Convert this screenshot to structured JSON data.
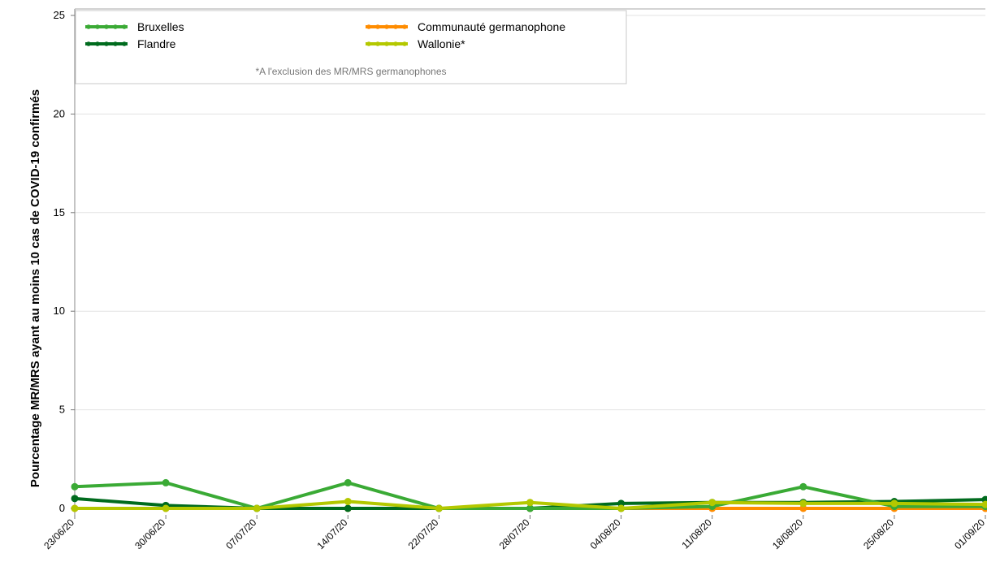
{
  "chart_data": {
    "type": "line",
    "title": "",
    "xlabel": "",
    "ylabel": "Pourcentage MR/MRS ayant au moins 10 cas de COVID-19 confirmés",
    "ylim": [
      0,
      25
    ],
    "yticks": [
      0,
      5,
      10,
      15,
      20,
      25
    ],
    "grid": "horizontal",
    "legend_placement": "top-left",
    "legend_note": "*A l'exclusion des MR/MRS germanophones",
    "categories": [
      "23/06/20",
      "30/06/20",
      "07/07/20",
      "14/07/20",
      "22/07/20",
      "28/07/20",
      "04/08/20",
      "11/08/20",
      "18/08/20",
      "25/08/20",
      "01/09/20"
    ],
    "series": [
      {
        "name": "Bruxelles",
        "color": "#3aaa35",
        "values": [
          1.1,
          1.3,
          0.0,
          1.3,
          0.0,
          0.0,
          0.0,
          0.1,
          1.1,
          0.1,
          0.1
        ]
      },
      {
        "name": "Communauté germanophone",
        "color": "#ff8c00",
        "values": [
          0.0,
          0.0,
          0.0,
          0.0,
          0.0,
          0.0,
          0.0,
          0.0,
          0.0,
          0.0,
          0.0
        ]
      },
      {
        "name": "Flandre",
        "color": "#006b1e",
        "values": [
          0.5,
          0.15,
          0.0,
          0.0,
          0.0,
          0.0,
          0.25,
          0.3,
          0.3,
          0.35,
          0.45
        ]
      },
      {
        "name": "Wallonie*",
        "color": "#b4c800",
        "values": [
          0.0,
          0.0,
          0.0,
          0.35,
          0.0,
          0.3,
          0.0,
          0.3,
          0.25,
          0.25,
          0.2
        ]
      }
    ]
  }
}
